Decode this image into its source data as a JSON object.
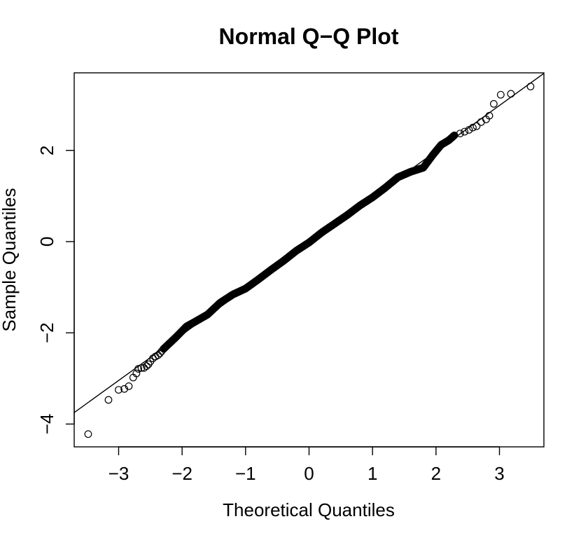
{
  "chart_data": {
    "type": "scatter",
    "title": "Normal Q−Q Plot",
    "xlabel": "Theoretical Quantiles",
    "ylabel": "Sample Quantiles",
    "xlim": [
      -3.7,
      3.7
    ],
    "ylim": [
      -4.5,
      3.7
    ],
    "x_ticks": [
      -3,
      -2,
      -1,
      0,
      1,
      2,
      3
    ],
    "x_tick_labels": [
      "−3",
      "−2",
      "−1",
      "0",
      "1",
      "2",
      "3"
    ],
    "y_ticks": [
      -4,
      -2,
      0,
      2
    ],
    "y_tick_labels": [
      "−4",
      "−2",
      "0",
      "2"
    ],
    "grid": false,
    "reference_line": {
      "intercept": -0.03,
      "slope": 1.005
    },
    "outliers": [
      {
        "x": -3.48,
        "y": -4.22
      },
      {
        "x": -3.16,
        "y": -3.47
      },
      {
        "x": -3.0,
        "y": -3.25
      },
      {
        "x": -2.91,
        "y": -3.23
      },
      {
        "x": -2.84,
        "y": -3.17
      },
      {
        "x": -2.77,
        "y": -2.98
      },
      {
        "x": -2.72,
        "y": -2.89
      },
      {
        "x": -2.69,
        "y": -2.79
      },
      {
        "x": -2.64,
        "y": -2.77
      },
      {
        "x": -2.6,
        "y": -2.77
      },
      {
        "x": -2.56,
        "y": -2.73
      },
      {
        "x": -2.53,
        "y": -2.69
      },
      {
        "x": -2.5,
        "y": -2.63
      },
      {
        "x": -2.46,
        "y": -2.56
      },
      {
        "x": -2.42,
        "y": -2.52
      },
      {
        "x": -2.38,
        "y": -2.49
      },
      {
        "x": -2.35,
        "y": -2.45
      },
      {
        "x": -2.32,
        "y": -2.4
      },
      {
        "x": -2.29,
        "y": -2.35
      },
      {
        "x": 2.29,
        "y": 2.33
      },
      {
        "x": 2.38,
        "y": 2.37
      },
      {
        "x": 2.45,
        "y": 2.41
      },
      {
        "x": 2.52,
        "y": 2.45
      },
      {
        "x": 2.58,
        "y": 2.5
      },
      {
        "x": 2.64,
        "y": 2.53
      },
      {
        "x": 2.71,
        "y": 2.62
      },
      {
        "x": 2.79,
        "y": 2.68
      },
      {
        "x": 2.84,
        "y": 2.76
      },
      {
        "x": 2.91,
        "y": 3.02
      },
      {
        "x": 3.02,
        "y": 3.22
      },
      {
        "x": 3.18,
        "y": 3.24
      },
      {
        "x": 3.49,
        "y": 3.4
      }
    ],
    "body_shape": [
      {
        "x": -2.29,
        "y": -2.35
      },
      {
        "x": -2.1,
        "y": -2.1
      },
      {
        "x": -1.93,
        "y": -1.86
      },
      {
        "x": -1.8,
        "y": -1.76
      },
      {
        "x": -1.6,
        "y": -1.6
      },
      {
        "x": -1.4,
        "y": -1.34
      },
      {
        "x": -1.2,
        "y": -1.16
      },
      {
        "x": -1.0,
        "y": -1.03
      },
      {
        "x": -0.8,
        "y": -0.83
      },
      {
        "x": -0.6,
        "y": -0.62
      },
      {
        "x": -0.4,
        "y": -0.42
      },
      {
        "x": -0.2,
        "y": -0.2
      },
      {
        "x": 0.0,
        "y": -0.02
      },
      {
        "x": 0.2,
        "y": 0.2
      },
      {
        "x": 0.4,
        "y": 0.39
      },
      {
        "x": 0.6,
        "y": 0.58
      },
      {
        "x": 0.8,
        "y": 0.79
      },
      {
        "x": 1.0,
        "y": 0.97
      },
      {
        "x": 1.2,
        "y": 1.18
      },
      {
        "x": 1.4,
        "y": 1.41
      },
      {
        "x": 1.6,
        "y": 1.53
      },
      {
        "x": 1.8,
        "y": 1.62
      },
      {
        "x": 1.95,
        "y": 1.9
      },
      {
        "x": 2.08,
        "y": 2.12
      },
      {
        "x": 2.2,
        "y": 2.22
      },
      {
        "x": 2.29,
        "y": 2.33
      }
    ]
  }
}
